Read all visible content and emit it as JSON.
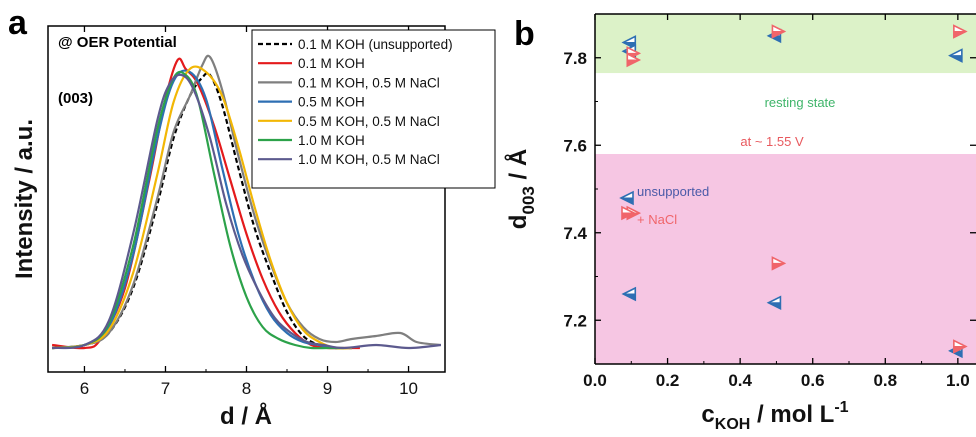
{
  "chart_data": [
    {
      "panel": "a",
      "type": "line",
      "xlabel": "d / Å",
      "ylabel": "Intensity / a.u.",
      "xlim": [
        5.55,
        10.45
      ],
      "x_ticks": [
        "6",
        "7",
        "8",
        "9",
        "10"
      ],
      "y_ticks": [],
      "annotations": [
        "@ OER Potential",
        "(003)"
      ],
      "legend": "top-right",
      "series": [
        {
          "name": "0.1 M KOH (unsupported)",
          "color": "#000000",
          "dash": "dashed",
          "x": [
            5.6,
            6.0,
            6.3,
            6.6,
            6.9,
            7.1,
            7.3,
            7.45,
            7.55,
            7.7,
            7.9,
            8.1,
            8.3,
            8.5,
            8.7,
            8.9,
            9.1,
            9.3
          ],
          "y": [
            0.02,
            0.03,
            0.07,
            0.22,
            0.5,
            0.72,
            0.86,
            0.92,
            0.93,
            0.83,
            0.62,
            0.42,
            0.27,
            0.14,
            0.06,
            0.03,
            0.02,
            0.02
          ]
        },
        {
          "name": "0.1 M KOH",
          "color": "#e41a1c",
          "dash": "solid",
          "x": [
            5.6,
            6.0,
            6.2,
            6.5,
            6.8,
            7.0,
            7.15,
            7.25,
            7.4,
            7.6,
            7.8,
            8.0,
            8.2,
            8.4,
            8.6,
            8.8,
            9.0,
            9.2,
            9.4
          ],
          "y": [
            0.03,
            0.02,
            0.05,
            0.22,
            0.58,
            0.85,
            0.98,
            0.95,
            0.9,
            0.76,
            0.58,
            0.4,
            0.25,
            0.14,
            0.07,
            0.03,
            0.02,
            0.02,
            0.02
          ]
        },
        {
          "name": "0.1 M KOH, 0.5 M NaCl",
          "color": "#7f7f7f",
          "dash": "solid",
          "x": [
            5.6,
            6.0,
            6.3,
            6.6,
            6.9,
            7.1,
            7.3,
            7.45,
            7.55,
            7.7,
            7.9,
            8.1,
            8.3,
            8.5,
            8.7,
            8.9,
            9.1,
            9.3,
            9.6,
            9.9,
            10.1,
            10.4
          ],
          "y": [
            0.02,
            0.03,
            0.07,
            0.23,
            0.52,
            0.74,
            0.86,
            0.96,
            0.99,
            0.88,
            0.66,
            0.46,
            0.3,
            0.17,
            0.09,
            0.05,
            0.04,
            0.05,
            0.06,
            0.07,
            0.04,
            0.03
          ]
        },
        {
          "name": "0.5 M KOH",
          "color": "#2e6fb3",
          "dash": "solid",
          "x": [
            5.6,
            6.0,
            6.3,
            6.6,
            6.9,
            7.1,
            7.3,
            7.5,
            7.7,
            7.9,
            8.1,
            8.3,
            8.5,
            8.7,
            8.9,
            9.1,
            9.3
          ],
          "y": [
            0.02,
            0.03,
            0.09,
            0.33,
            0.72,
            0.91,
            0.94,
            0.85,
            0.62,
            0.4,
            0.24,
            0.13,
            0.07,
            0.04,
            0.03,
            0.02,
            0.02
          ]
        },
        {
          "name": "0.5 M KOH, 0.5 M NaCl",
          "color": "#f2b705",
          "dash": "solid",
          "x": [
            5.6,
            6.0,
            6.3,
            6.6,
            6.9,
            7.1,
            7.3,
            7.5,
            7.7,
            7.9,
            8.1,
            8.3,
            8.5,
            8.7,
            8.9,
            9.1,
            9.3
          ],
          "y": [
            0.02,
            0.03,
            0.08,
            0.27,
            0.6,
            0.84,
            0.95,
            0.94,
            0.86,
            0.69,
            0.49,
            0.31,
            0.17,
            0.08,
            0.04,
            0.02,
            0.02
          ]
        },
        {
          "name": "1.0 M KOH",
          "color": "#2ca24a",
          "dash": "solid",
          "x": [
            5.6,
            6.0,
            6.3,
            6.6,
            6.9,
            7.1,
            7.25,
            7.4,
            7.6,
            7.8,
            8.0,
            8.2,
            8.4,
            8.6,
            8.8,
            9.0,
            9.2
          ],
          "y": [
            0.02,
            0.03,
            0.1,
            0.36,
            0.75,
            0.92,
            0.93,
            0.85,
            0.6,
            0.36,
            0.19,
            0.09,
            0.05,
            0.03,
            0.02,
            0.02,
            0.02
          ]
        },
        {
          "name": "1.0 M KOH, 0.5 M NaCl",
          "color": "#5c5a8e",
          "dash": "solid",
          "x": [
            5.6,
            6.0,
            6.3,
            6.6,
            6.9,
            7.05,
            7.2,
            7.35,
            7.55,
            7.75,
            7.95,
            8.15,
            8.35,
            8.55,
            8.75,
            8.95,
            9.2,
            9.6,
            10.0,
            10.4
          ],
          "y": [
            0.02,
            0.03,
            0.11,
            0.4,
            0.78,
            0.9,
            0.93,
            0.88,
            0.72,
            0.5,
            0.33,
            0.21,
            0.12,
            0.07,
            0.04,
            0.03,
            0.02,
            0.03,
            0.02,
            0.03
          ]
        }
      ]
    },
    {
      "panel": "b",
      "type": "scatter",
      "xlabel": "c_KOH / mol L⁻¹",
      "ylabel": "d_003 / Å",
      "xlim": [
        0.0,
        1.05
      ],
      "ylim": [
        7.1,
        7.9
      ],
      "x_ticks": [
        "0.0",
        "0.2",
        "0.4",
        "0.6",
        "0.8",
        "1.0"
      ],
      "y_ticks": [
        "7.2",
        "7.4",
        "7.6",
        "7.8"
      ],
      "bands": [
        {
          "label": "resting state",
          "from": 7.765,
          "to": 7.9,
          "color": "#dcf2c8",
          "label_color": "#3fb56a"
        },
        {
          "label": "at ~ 1.55 V",
          "from": 7.1,
          "to": 7.58,
          "color": "#f6c6e3",
          "label_color": "#e8595e"
        }
      ],
      "legend_entries": [
        {
          "label": "unsupported",
          "marker": "left-triangle",
          "color": "#2e6fb3",
          "label_color": "#4a5aa8"
        },
        {
          "label": "+ NaCl",
          "marker": "right-triangle",
          "color": "#f0656a",
          "label_color": "#f0656a"
        }
      ],
      "series": [
        {
          "name": "unsupported",
          "marker": "left-triangle",
          "color": "#2e6fb3",
          "x": [
            0.1,
            0.1,
            0.5,
            1.0,
            0.1,
            0.5,
            1.0
          ],
          "y": [
            7.835,
            7.815,
            7.85,
            7.805,
            7.26,
            7.24,
            7.13
          ]
        },
        {
          "name": "+ NaCl",
          "marker": "right-triangle",
          "color": "#f0656a",
          "x": [
            0.1,
            0.1,
            0.5,
            1.0,
            0.1,
            0.5,
            1.0
          ],
          "y": [
            7.81,
            7.795,
            7.86,
            7.86,
            7.445,
            7.33,
            7.14
          ]
        }
      ]
    }
  ],
  "panel_labels": [
    "a",
    "b"
  ]
}
